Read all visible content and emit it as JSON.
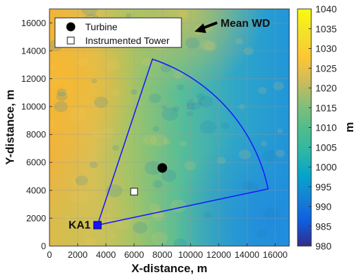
{
  "chart_data": {
    "type": "heatmap",
    "title": "",
    "xlabel": "X-distance, m",
    "ylabel": "Y-distance, m",
    "xlim": [
      0,
      17000
    ],
    "ylim": [
      0,
      17000
    ],
    "xticks": [
      0,
      2000,
      4000,
      6000,
      8000,
      10000,
      12000,
      14000,
      16000
    ],
    "yticks": [
      0,
      2000,
      4000,
      6000,
      8000,
      10000,
      12000,
      14000,
      16000
    ],
    "grid": true,
    "colorbar": {
      "label": "m",
      "range": [
        980,
        1040
      ],
      "ticks": [
        980,
        985,
        990,
        995,
        1000,
        1005,
        1010,
        1015,
        1020,
        1025,
        1030,
        1035,
        1040
      ],
      "colormap": "parula"
    },
    "elevation_field": {
      "note_left": "higher elevation (~1025-1030 m) at west, decreasing toward east",
      "west_value": 1027,
      "east_value": 1005,
      "southeast_value": 1003
    },
    "sector": {
      "apex": [
        3400,
        1500
      ],
      "corner_left": [
        7300,
        13400
      ],
      "corner_right": [
        15500,
        4100
      ],
      "color": "#1a1aff"
    },
    "points": [
      {
        "name": "Turbine",
        "x": 8000,
        "y": 5600,
        "marker": "circle",
        "color": "#000000"
      },
      {
        "name": "Instrumented Tower",
        "x": 6000,
        "y": 3900,
        "marker": "square",
        "color": "#ffffff"
      },
      {
        "name": "KA1",
        "x": 3400,
        "y": 1500,
        "marker": "square",
        "color": "#1414ff"
      }
    ],
    "legend": {
      "placement": "top-left",
      "entries": [
        {
          "label": "Turbine",
          "marker": "circle"
        },
        {
          "label": "Instrumented Tower",
          "marker": "square"
        }
      ]
    },
    "annotations": {
      "mean_wd": "Mean WD",
      "ka1": "KA1"
    }
  }
}
